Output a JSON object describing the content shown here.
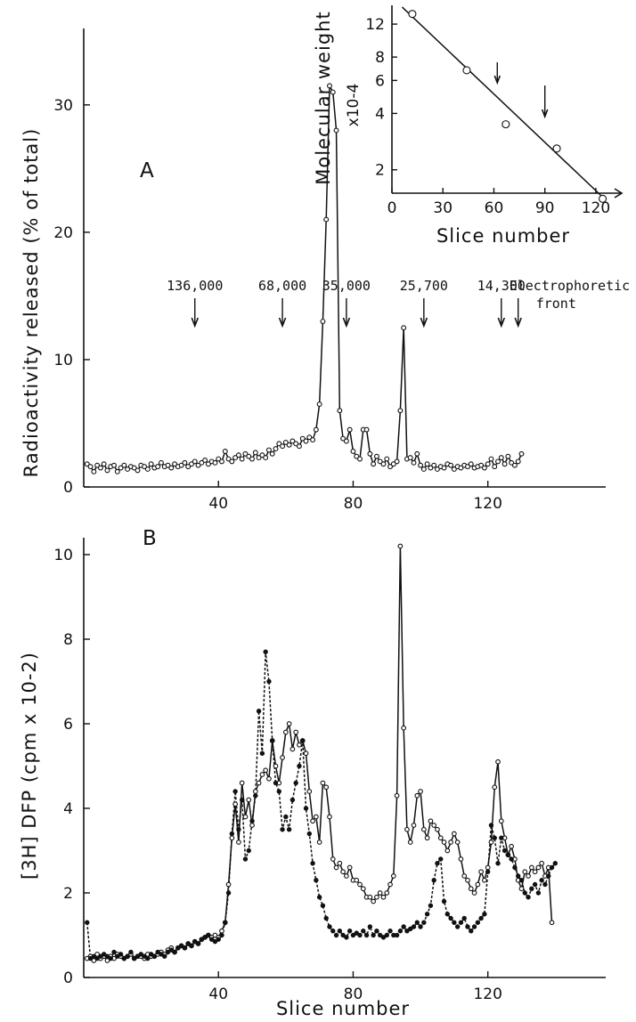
{
  "chart_data": [
    {
      "panel": "A",
      "type": "line",
      "panel_label": "A",
      "ylabel": "Radioactivity released (% of total)",
      "xlabel": "",
      "xlim": [
        0,
        155
      ],
      "ylim": [
        0,
        36
      ],
      "xticks": [
        40,
        80,
        120
      ],
      "yticks": [
        0,
        10,
        20,
        30
      ],
      "markers": [
        {
          "label": "136,000",
          "x": 33
        },
        {
          "label": "68,000",
          "x": 59
        },
        {
          "label": "35,000",
          "x": 78
        },
        {
          "label": "25,700",
          "x": 101
        },
        {
          "label": "14,300",
          "x": 124
        },
        {
          "label": "Electrophoretic front",
          "x": 129
        }
      ],
      "series": [
        {
          "marker": "open",
          "x": [
            1,
            2,
            3,
            4,
            5,
            6,
            7,
            8,
            9,
            10,
            11,
            12,
            13,
            14,
            15,
            16,
            17,
            18,
            19,
            20,
            21,
            22,
            23,
            24,
            25,
            26,
            27,
            28,
            29,
            30,
            31,
            32,
            33,
            34,
            35,
            36,
            37,
            38,
            39,
            40,
            41,
            42,
            43,
            44,
            45,
            46,
            47,
            48,
            49,
            50,
            51,
            52,
            53,
            54,
            55,
            56,
            57,
            58,
            59,
            60,
            61,
            62,
            63,
            64,
            65,
            66,
            67,
            68,
            69,
            70,
            71,
            72,
            73,
            74,
            75,
            76,
            77,
            78,
            79,
            80,
            81,
            82,
            83,
            84,
            85,
            86,
            87,
            88,
            89,
            90,
            91,
            92,
            93,
            94,
            95,
            96,
            97,
            98,
            99,
            100,
            101,
            102,
            103,
            104,
            105,
            106,
            107,
            108,
            109,
            110,
            111,
            112,
            113,
            114,
            115,
            116,
            117,
            118,
            119,
            120,
            121,
            122,
            123,
            124,
            125,
            126,
            127,
            128,
            129,
            130
          ],
          "y": [
            1.8,
            1.6,
            1.2,
            1.7,
            1.5,
            1.8,
            1.3,
            1.6,
            1.7,
            1.2,
            1.5,
            1.7,
            1.4,
            1.6,
            1.5,
            1.3,
            1.7,
            1.6,
            1.4,
            1.8,
            1.5,
            1.6,
            1.9,
            1.6,
            1.7,
            1.5,
            1.8,
            1.6,
            1.7,
            1.9,
            1.6,
            1.8,
            2.0,
            1.7,
            1.9,
            2.1,
            1.8,
            2.0,
            1.9,
            2.2,
            2.0,
            2.8,
            2.2,
            2.0,
            2.3,
            2.5,
            2.2,
            2.6,
            2.4,
            2.2,
            2.7,
            2.3,
            2.5,
            2.3,
            2.9,
            2.6,
            3.0,
            3.4,
            3.2,
            3.5,
            3.3,
            3.6,
            3.4,
            3.2,
            3.8,
            3.6,
            3.9,
            3.7,
            4.5,
            6.5,
            13,
            21,
            31.5,
            31,
            28,
            6,
            3.8,
            3.6,
            4.5,
            2.8,
            2.4,
            2.2,
            4.5,
            4.5,
            2.6,
            1.8,
            2.4,
            2.0,
            1.8,
            2.2,
            1.6,
            1.8,
            2.0,
            6,
            12.5,
            2.2,
            2.3,
            1.9,
            2.6,
            1.7,
            1.4,
            1.8,
            1.5,
            1.7,
            1.4,
            1.6,
            1.5,
            1.8,
            1.7,
            1.4,
            1.6,
            1.5,
            1.7,
            1.6,
            1.8,
            1.5,
            1.6,
            1.7,
            1.5,
            1.8,
            2.2,
            1.6,
            2.0,
            2.3,
            1.8,
            2.4,
            1.9,
            1.7,
            2.0,
            2.6
          ]
        }
      ]
    },
    {
      "panel": "B",
      "type": "line",
      "panel_label": "B",
      "ylabel": "[3H] DFP  (cpm x 10-2)",
      "xlabel": "Slice number",
      "xlim": [
        0,
        155
      ],
      "ylim": [
        0,
        10.4
      ],
      "xticks": [
        40,
        80,
        120
      ],
      "yticks": [
        0,
        2,
        4,
        6,
        8,
        10
      ],
      "series": [
        {
          "marker": "open",
          "line": "solid",
          "x": [
            1,
            2,
            3,
            4,
            5,
            6,
            7,
            8,
            9,
            10,
            11,
            12,
            13,
            14,
            15,
            16,
            17,
            18,
            19,
            20,
            21,
            22,
            23,
            24,
            25,
            26,
            27,
            28,
            29,
            30,
            31,
            32,
            33,
            34,
            35,
            36,
            37,
            38,
            39,
            40,
            41,
            42,
            43,
            44,
            45,
            46,
            47,
            48,
            49,
            50,
            51,
            52,
            53,
            54,
            55,
            56,
            57,
            58,
            59,
            60,
            61,
            62,
            63,
            64,
            65,
            66,
            67,
            68,
            69,
            70,
            71,
            72,
            73,
            74,
            75,
            76,
            77,
            78,
            79,
            80,
            81,
            82,
            83,
            84,
            85,
            86,
            87,
            88,
            89,
            90,
            91,
            92,
            93,
            94,
            95,
            96,
            97,
            98,
            99,
            100,
            101,
            102,
            103,
            104,
            105,
            106,
            107,
            108,
            109,
            110,
            111,
            112,
            113,
            114,
            115,
            116,
            117,
            118,
            119,
            120,
            121,
            122,
            123,
            124,
            125,
            126,
            127,
            128,
            129,
            130,
            131,
            132,
            133,
            134,
            135,
            136,
            137,
            138,
            139
          ],
          "y": [
            0.45,
            0.5,
            0.4,
            0.55,
            0.45,
            0.5,
            0.4,
            0.5,
            0.45,
            0.55,
            0.5,
            0.45,
            0.5,
            0.55,
            0.45,
            0.5,
            0.5,
            0.45,
            0.55,
            0.5,
            0.5,
            0.55,
            0.6,
            0.55,
            0.65,
            0.7,
            0.6,
            0.7,
            0.75,
            0.7,
            0.8,
            0.75,
            0.85,
            0.8,
            0.9,
            0.95,
            1.0,
            0.95,
            1.0,
            0.95,
            1.1,
            1.3,
            2.2,
            3.3,
            4.1,
            3.2,
            4.6,
            3.8,
            4.2,
            3.6,
            4.4,
            4.6,
            4.8,
            4.9,
            4.7,
            5.6,
            5.0,
            4.6,
            5.2,
            5.8,
            6.0,
            5.4,
            5.8,
            5.5,
            5.6,
            5.3,
            4.4,
            3.7,
            3.8,
            3.2,
            4.6,
            4.5,
            3.8,
            2.8,
            2.6,
            2.7,
            2.5,
            2.4,
            2.6,
            2.3,
            2.3,
            2.2,
            2.1,
            1.9,
            1.9,
            1.8,
            1.9,
            2.0,
            1.9,
            2.0,
            2.2,
            2.4,
            4.3,
            10.2,
            5.9,
            3.5,
            3.2,
            3.6,
            4.3,
            4.4,
            3.5,
            3.3,
            3.7,
            3.6,
            3.5,
            3.3,
            3.2,
            3.0,
            3.2,
            3.4,
            3.2,
            2.8,
            2.4,
            2.3,
            2.1,
            2.0,
            2.2,
            2.5,
            2.3,
            2.6,
            3.2,
            4.5,
            5.1,
            3.7,
            3.3,
            2.9,
            3.1,
            2.8,
            2.3,
            2.1,
            2.5,
            2.4,
            2.6,
            2.5,
            2.6,
            2.7,
            2.4,
            2.6,
            1.3
          ]
        },
        {
          "marker": "filled",
          "line": "dashed",
          "x": [
            1,
            2,
            3,
            4,
            5,
            6,
            7,
            8,
            9,
            10,
            11,
            12,
            13,
            14,
            15,
            16,
            17,
            18,
            19,
            20,
            21,
            22,
            23,
            24,
            25,
            26,
            27,
            28,
            29,
            30,
            31,
            32,
            33,
            34,
            35,
            36,
            37,
            38,
            39,
            40,
            41,
            42,
            43,
            44,
            45,
            46,
            47,
            48,
            49,
            50,
            51,
            52,
            53,
            54,
            55,
            56,
            57,
            58,
            59,
            60,
            61,
            62,
            63,
            64,
            65,
            66,
            67,
            68,
            69,
            70,
            71,
            72,
            73,
            74,
            75,
            76,
            77,
            78,
            79,
            80,
            81,
            82,
            83,
            84,
            85,
            86,
            87,
            88,
            89,
            90,
            91,
            92,
            93,
            94,
            95,
            96,
            97,
            98,
            99,
            100,
            101,
            102,
            103,
            104,
            105,
            106,
            107,
            108,
            109,
            110,
            111,
            112,
            113,
            114,
            115,
            116,
            117,
            118,
            119,
            120,
            121,
            122,
            123,
            124,
            125,
            126,
            127,
            128,
            129,
            130,
            131,
            132,
            133,
            134,
            135,
            136,
            137,
            138,
            139,
            140
          ],
          "y": [
            1.3,
            0.45,
            0.5,
            0.45,
            0.5,
            0.55,
            0.5,
            0.45,
            0.6,
            0.5,
            0.55,
            0.45,
            0.5,
            0.6,
            0.45,
            0.5,
            0.55,
            0.5,
            0.45,
            0.55,
            0.5,
            0.6,
            0.55,
            0.5,
            0.6,
            0.65,
            0.6,
            0.7,
            0.75,
            0.7,
            0.8,
            0.75,
            0.85,
            0.8,
            0.9,
            0.95,
            1.0,
            0.9,
            0.85,
            0.9,
            1.0,
            1.3,
            2.0,
            3.4,
            4.4,
            3.5,
            4.2,
            2.8,
            3.0,
            3.7,
            4.3,
            6.3,
            5.3,
            7.7,
            7.0,
            5.6,
            4.6,
            4.4,
            3.5,
            3.8,
            3.5,
            4.2,
            4.6,
            5.0,
            5.6,
            4.0,
            3.4,
            2.7,
            2.3,
            1.9,
            1.7,
            1.4,
            1.2,
            1.1,
            1.0,
            1.1,
            1.0,
            0.95,
            1.1,
            1.0,
            1.05,
            1.0,
            1.1,
            1.0,
            1.2,
            1.0,
            1.1,
            1.0,
            0.95,
            1.0,
            1.1,
            1.0,
            1.0,
            1.1,
            1.2,
            1.1,
            1.15,
            1.2,
            1.3,
            1.2,
            1.3,
            1.5,
            1.7,
            2.3,
            2.7,
            2.8,
            1.8,
            1.5,
            1.4,
            1.3,
            1.2,
            1.3,
            1.4,
            1.2,
            1.1,
            1.2,
            1.3,
            1.4,
            1.5,
            2.5,
            3.6,
            3.3,
            2.7,
            3.3,
            3.0,
            2.9,
            2.8,
            2.6,
            2.4,
            2.3,
            2.0,
            1.9,
            2.1,
            2.2,
            2.0,
            2.3,
            2.2,
            2.4,
            2.6,
            2.7
          ]
        }
      ]
    },
    {
      "panel": "inset",
      "type": "scatter",
      "ylabel": "Molecular weight",
      "ylabel_unit": "x10-4",
      "xlabel": "Slice number",
      "xlim": [
        0,
        130
      ],
      "ylim": [
        1.5,
        14
      ],
      "yscale": "log",
      "xticks": [
        0,
        30,
        60,
        90,
        120
      ],
      "yticks": [
        2,
        4,
        6,
        8,
        12
      ],
      "points": [
        {
          "x": 12,
          "y": 13.6
        },
        {
          "x": 44,
          "y": 6.8
        },
        {
          "x": 67,
          "y": 3.5
        },
        {
          "x": 97,
          "y": 2.6
        },
        {
          "x": 124,
          "y": 1.4
        }
      ],
      "fit_line": [
        [
          6,
          14.8
        ],
        [
          124,
          1.43
        ]
      ],
      "arrows_x": [
        62,
        90
      ]
    }
  ]
}
